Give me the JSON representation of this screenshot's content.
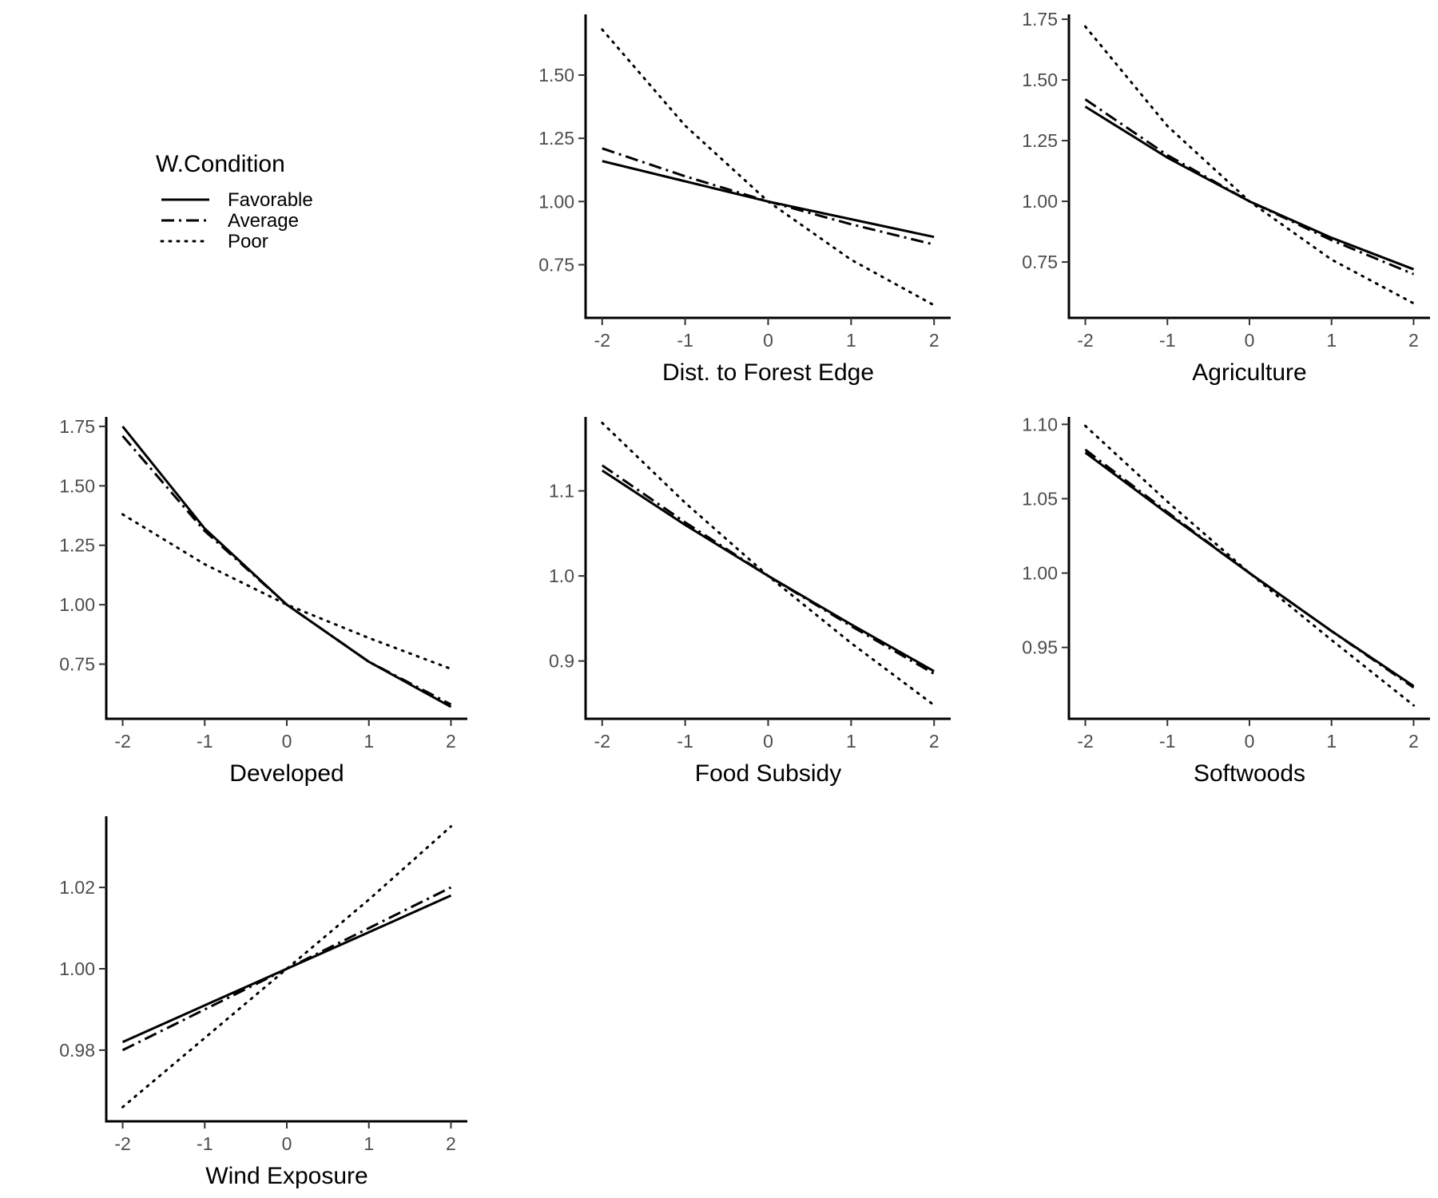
{
  "legend": {
    "title": "W.Condition",
    "entries": [
      {
        "name": "Favorable",
        "dash": "solid"
      },
      {
        "name": "Average",
        "dash": "dashdot"
      },
      {
        "name": "Poor",
        "dash": "dotted"
      }
    ]
  },
  "chart_data": [
    {
      "type": "line",
      "xlabel": "Dist. to Forest Edge",
      "xticks": [
        -2,
        -1,
        0,
        1,
        2
      ],
      "yticks": [
        0.75,
        1.0,
        1.25,
        1.5
      ],
      "ytick_labels": [
        "0.75",
        "1.00",
        "1.25",
        "1.50"
      ],
      "xlim": [
        -2.2,
        2.2
      ],
      "ylim": [
        0.54,
        1.74
      ],
      "x": [
        -2,
        -1,
        0,
        1,
        2
      ],
      "series": [
        {
          "name": "Favorable",
          "values": [
            1.16,
            1.08,
            1.0,
            0.93,
            0.86
          ]
        },
        {
          "name": "Average",
          "values": [
            1.21,
            1.1,
            1.0,
            0.91,
            0.83
          ]
        },
        {
          "name": "Poor",
          "values": [
            1.68,
            1.3,
            1.0,
            0.77,
            0.59
          ]
        }
      ]
    },
    {
      "type": "line",
      "xlabel": "Agriculture",
      "xticks": [
        -2,
        -1,
        0,
        1,
        2
      ],
      "yticks": [
        0.75,
        1.0,
        1.25,
        1.5,
        1.75
      ],
      "ytick_labels": [
        "0.75",
        "1.00",
        "1.25",
        "1.50",
        "1.75"
      ],
      "xlim": [
        -2.2,
        2.2
      ],
      "ylim": [
        0.52,
        1.77
      ],
      "x": [
        -2,
        -1,
        0,
        1,
        2
      ],
      "series": [
        {
          "name": "Favorable",
          "values": [
            1.39,
            1.18,
            1.0,
            0.85,
            0.72
          ]
        },
        {
          "name": "Average",
          "values": [
            1.42,
            1.19,
            1.0,
            0.84,
            0.7
          ]
        },
        {
          "name": "Poor",
          "values": [
            1.72,
            1.31,
            1.0,
            0.76,
            0.58
          ]
        }
      ]
    },
    {
      "type": "line",
      "xlabel": "Developed",
      "xticks": [
        -2,
        -1,
        0,
        1,
        2
      ],
      "yticks": [
        0.75,
        1.0,
        1.25,
        1.5,
        1.75
      ],
      "ytick_labels": [
        "0.75",
        "1.00",
        "1.25",
        "1.50",
        "1.75"
      ],
      "xlim": [
        -2.2,
        2.2
      ],
      "ylim": [
        0.52,
        1.79
      ],
      "x": [
        -2,
        -1,
        0,
        1,
        2
      ],
      "series": [
        {
          "name": "Favorable",
          "values": [
            1.75,
            1.32,
            1.0,
            0.76,
            0.57
          ]
        },
        {
          "name": "Average",
          "values": [
            1.71,
            1.31,
            1.0,
            0.76,
            0.58
          ]
        },
        {
          "name": "Poor",
          "values": [
            1.38,
            1.17,
            1.0,
            0.86,
            0.73
          ]
        }
      ]
    },
    {
      "type": "line",
      "xlabel": "Food Subsidy",
      "xticks": [
        -2,
        -1,
        0,
        1,
        2
      ],
      "yticks": [
        0.9,
        1.0,
        1.1
      ],
      "ytick_labels": [
        "0.9",
        "1.0",
        "1.1"
      ],
      "xlim": [
        -2.2,
        2.2
      ],
      "ylim": [
        0.832,
        1.187
      ],
      "x": [
        -2,
        -1,
        0,
        1,
        2
      ],
      "series": [
        {
          "name": "Favorable",
          "values": [
            1.124,
            1.06,
            1.0,
            0.943,
            0.888
          ]
        },
        {
          "name": "Average",
          "values": [
            1.13,
            1.063,
            1.0,
            0.941,
            0.885
          ]
        },
        {
          "name": "Poor",
          "values": [
            1.18,
            1.086,
            1.0,
            0.921,
            0.848
          ]
        }
      ]
    },
    {
      "type": "line",
      "xlabel": "Softwoods",
      "xticks": [
        -2,
        -1,
        0,
        1,
        2
      ],
      "yticks": [
        0.95,
        1.0,
        1.05,
        1.1
      ],
      "ytick_labels": [
        "0.95",
        "1.00",
        "1.05",
        "1.10"
      ],
      "xlim": [
        -2.2,
        2.2
      ],
      "ylim": [
        0.902,
        1.105
      ],
      "x": [
        -2,
        -1,
        0,
        1,
        2
      ],
      "series": [
        {
          "name": "Favorable",
          "values": [
            1.081,
            1.04,
            1.0,
            0.961,
            0.924
          ]
        },
        {
          "name": "Average",
          "values": [
            1.083,
            1.041,
            1.0,
            0.961,
            0.923
          ]
        },
        {
          "name": "Poor",
          "values": [
            1.099,
            1.048,
            1.0,
            0.955,
            0.911
          ]
        }
      ]
    },
    {
      "type": "line",
      "xlabel": "Wind Exposure",
      "xticks": [
        -2,
        -1,
        0,
        1,
        2
      ],
      "yticks": [
        0.98,
        1.0,
        1.02
      ],
      "ytick_labels": [
        "0.98",
        "1.00",
        "1.02"
      ],
      "xlim": [
        -2.2,
        2.2
      ],
      "ylim": [
        0.9625,
        1.0375
      ],
      "x": [
        -2,
        -1,
        0,
        1,
        2
      ],
      "series": [
        {
          "name": "Favorable",
          "values": [
            0.982,
            0.991,
            1.0,
            1.009,
            1.018
          ]
        },
        {
          "name": "Average",
          "values": [
            0.98,
            0.99,
            1.0,
            1.01,
            1.02
          ]
        },
        {
          "name": "Poor",
          "values": [
            0.966,
            0.983,
            1.0,
            1.017,
            1.035
          ]
        }
      ]
    }
  ]
}
